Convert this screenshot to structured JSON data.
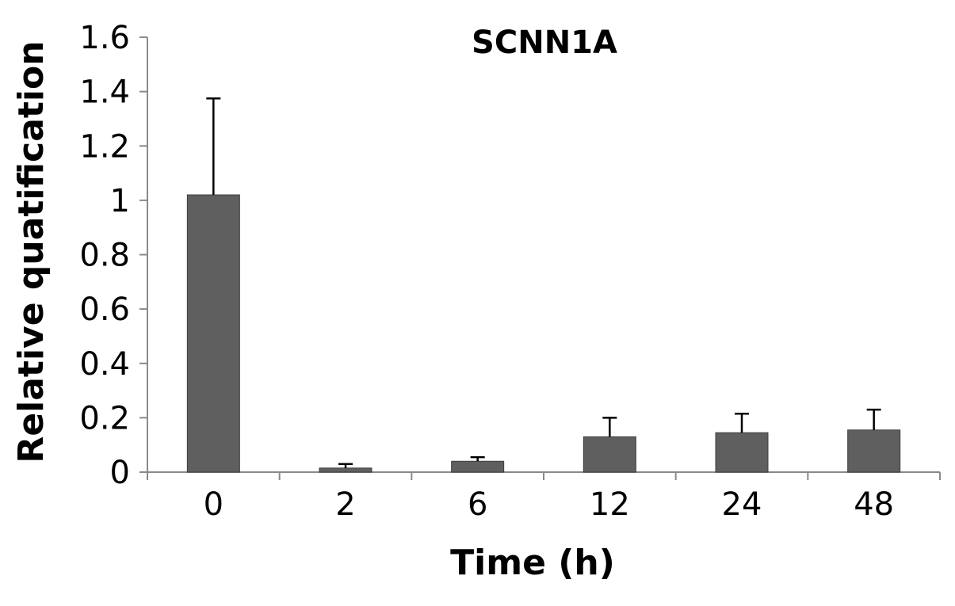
{
  "chart_data": {
    "type": "bar",
    "title": "SCNN1A",
    "xlabel": "Time (h)",
    "ylabel": "Relative quatification",
    "categories": [
      "0",
      "2",
      "6",
      "12",
      "24",
      "48"
    ],
    "series": [
      {
        "values": [
          1.02,
          0.015,
          0.04,
          0.13,
          0.145,
          0.155
        ],
        "error_upper": [
          0.355,
          0.015,
          0.015,
          0.07,
          0.07,
          0.075
        ]
      }
    ],
    "ylim": [
      0,
      1.6
    ],
    "yticks": [
      "0",
      "0.2",
      "0.4",
      "0.6",
      "0.8",
      "1",
      "1.2",
      "1.4",
      "1.6"
    ],
    "grid": false,
    "legend": "none",
    "colors": {
      "bar": "#5f5f5f",
      "bar_edge": "#3c3c3c",
      "axis": "#8a8a8a",
      "error_bar": "#000000",
      "text": "#000000"
    }
  }
}
